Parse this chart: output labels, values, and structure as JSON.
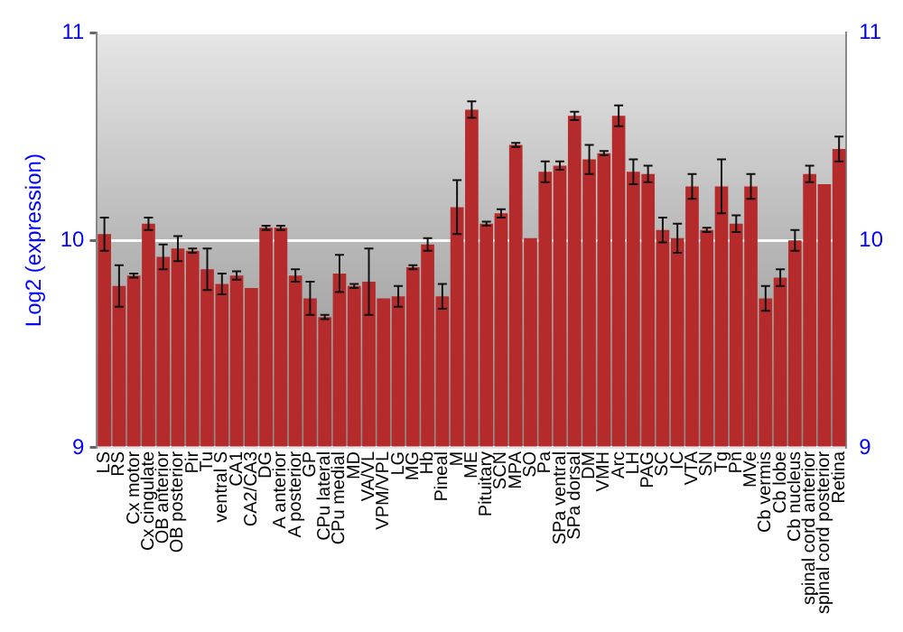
{
  "chart_data": {
    "type": "bar",
    "ylabel": "Log2 (expression)",
    "categories": [
      "LS",
      "RS",
      "Cx motor",
      "Cx cingulate",
      "OB anterior",
      "OB posterior",
      "Pir",
      "Tu",
      "ventral S",
      "CA1",
      "CA2/CA3",
      "DG",
      "A anterior",
      "A posterior",
      "GP",
      "CPu lateral",
      "CPu medial",
      "MD",
      "VA/VL",
      "VPM/VPL",
      "LG",
      "MG",
      "Hb",
      "Pineal",
      "M",
      "ME",
      "Pituitary",
      "SCN",
      "MPA",
      "SO",
      "Pa",
      "SPa ventral",
      "SPa dorsal",
      "DM",
      "VMH",
      "Arc",
      "LH",
      "PAG",
      "SC",
      "IC",
      "VTA",
      "SN",
      "Tg",
      "Pn",
      "MVe",
      "Cb vermis",
      "Cb lobe",
      "Cb nucleus",
      "spinal cord anterior",
      "spinal cord posterior",
      "Retina"
    ],
    "values": [
      10.03,
      9.78,
      9.83,
      10.08,
      9.92,
      9.96,
      9.95,
      9.86,
      9.79,
      9.83,
      9.77,
      10.06,
      10.06,
      9.83,
      9.72,
      9.63,
      9.84,
      9.78,
      9.8,
      9.72,
      9.73,
      9.87,
      9.98,
      9.73,
      10.16,
      10.63,
      10.08,
      10.13,
      10.46,
      10.01,
      10.33,
      10.36,
      10.6,
      10.39,
      10.42,
      10.6,
      10.33,
      10.32,
      10.05,
      10.01,
      10.26,
      10.05,
      10.26,
      10.08,
      10.26,
      9.72,
      9.82,
      10.0,
      10.32,
      10.27,
      10.44
    ],
    "errors": [
      0.08,
      0.1,
      0.01,
      0.03,
      0.06,
      0.06,
      0.01,
      0.1,
      0.05,
      0.02,
      null,
      0.01,
      0.01,
      0.03,
      0.08,
      0.01,
      0.09,
      0.01,
      0.16,
      null,
      0.05,
      0.01,
      0.03,
      0.06,
      0.13,
      0.04,
      0.01,
      0.02,
      0.01,
      null,
      0.05,
      0.02,
      0.02,
      0.07,
      0.01,
      0.05,
      0.06,
      0.04,
      0.06,
      0.07,
      0.06,
      0.01,
      0.13,
      0.04,
      0.06,
      0.06,
      0.04,
      0.05,
      0.04,
      null,
      0.06
    ],
    "color": "#b52a2a",
    "ylim": [
      9,
      11
    ],
    "yticks": [
      9,
      10,
      11
    ],
    "y2lim": [
      9,
      11
    ],
    "y2ticks": [
      9,
      10,
      11
    ],
    "grid": "y",
    "legend": false
  }
}
